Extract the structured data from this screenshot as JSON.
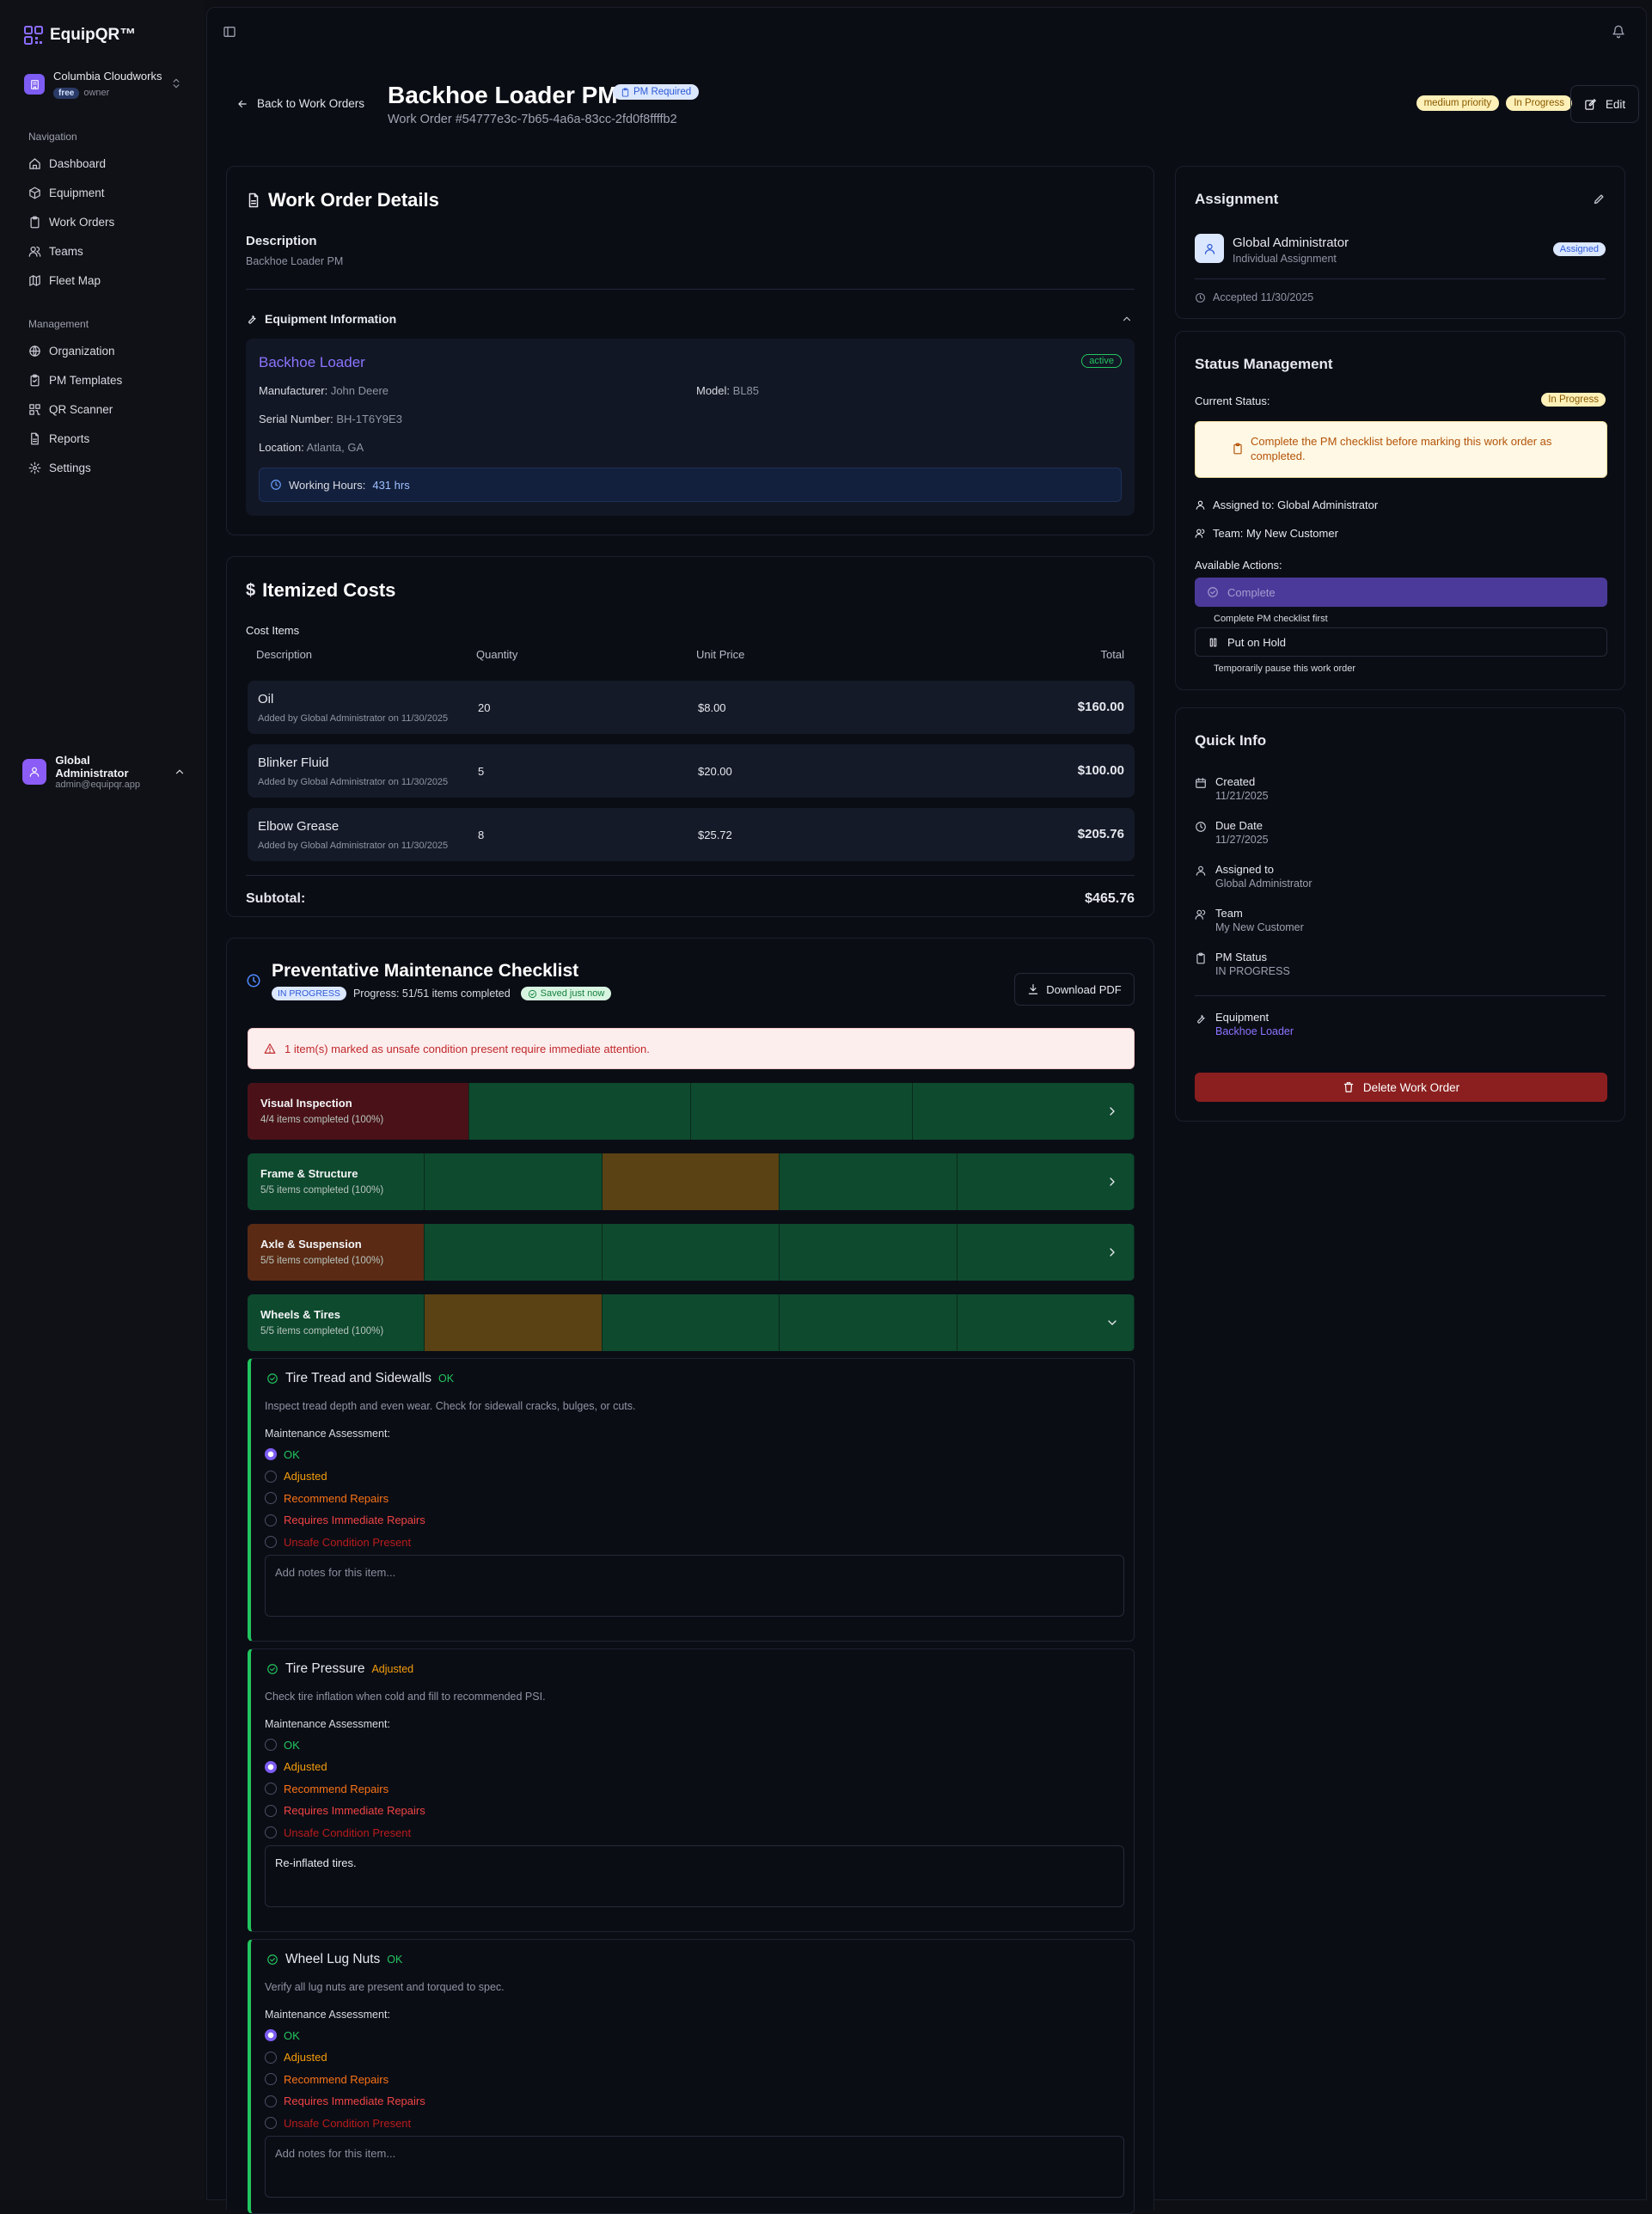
{
  "app": {
    "name": "EquipQR™"
  },
  "org": {
    "name": "Columbia Cloudworks",
    "plan": "free",
    "role": "owner"
  },
  "nav": {
    "heading": "Navigation",
    "items": [
      {
        "label": "Dashboard",
        "icon": "home-icon"
      },
      {
        "label": "Equipment",
        "icon": "box-icon"
      },
      {
        "label": "Work Orders",
        "icon": "clipboard-icon"
      },
      {
        "label": "Teams",
        "icon": "users-icon"
      },
      {
        "label": "Fleet Map",
        "icon": "map-icon"
      }
    ]
  },
  "management": {
    "heading": "Management",
    "items": [
      {
        "label": "Organization",
        "icon": "globe-icon"
      },
      {
        "label": "PM Templates",
        "icon": "clipboard-check-icon"
      },
      {
        "label": "QR Scanner",
        "icon": "qr-icon"
      },
      {
        "label": "Reports",
        "icon": "file-icon"
      },
      {
        "label": "Settings",
        "icon": "gear-icon"
      }
    ]
  },
  "user": {
    "name": "Global Administrator",
    "email": "admin@equipqr.app"
  },
  "header": {
    "back_label": "Back to Work Orders",
    "title": "Backhoe Loader PM",
    "pm_badge": "PM Required",
    "work_order_number": "Work Order #54777e3c-7b65-4a6a-83cc-2fd0f8ffffb2",
    "priority_badge": "medium priority",
    "status_badge": "In Progress",
    "edit_label": "Edit"
  },
  "details": {
    "title": "Work Order Details",
    "description_label": "Description",
    "description": "Backhoe Loader PM",
    "equipment_section_title": "Equipment Information",
    "equipment_name": "Backhoe Loader",
    "equipment_status": "active",
    "manufacturer_label": "Manufacturer:",
    "manufacturer": "John Deere",
    "model_label": "Model:",
    "model": "BL85",
    "serial_label": "Serial Number:",
    "serial": "BH-1T6Y9E3",
    "location_label": "Location:",
    "location": "Atlanta, GA",
    "hours_label": "Working Hours:",
    "hours": "431 hrs"
  },
  "costs": {
    "title": "Itemized Costs",
    "section_label": "Cost Items",
    "columns": [
      "Description",
      "Quantity",
      "Unit Price",
      "Total"
    ],
    "rows": [
      {
        "name": "Oil",
        "added": "Added by Global Administrator on 11/30/2025",
        "qty": "20",
        "price": "$8.00",
        "total": "$160.00"
      },
      {
        "name": "Blinker Fluid",
        "added": "Added by Global Administrator on 11/30/2025",
        "qty": "5",
        "price": "$20.00",
        "total": "$100.00"
      },
      {
        "name": "Elbow Grease",
        "added": "Added by Global Administrator on 11/30/2025",
        "qty": "8",
        "price": "$25.72",
        "total": "$205.76"
      }
    ],
    "subtotal_label": "Subtotal:",
    "subtotal": "$465.76"
  },
  "checklist": {
    "title": "Preventative Maintenance Checklist",
    "status_badge": "IN PROGRESS",
    "progress_text": "Progress: 51/51 items completed",
    "saved_badge": "Saved just now",
    "download_label": "Download PDF",
    "alert": "1 item(s) marked as unsafe condition present require immediate attention.",
    "categories": [
      {
        "title": "Visual Inspection",
        "subtitle": "4/4 items completed (100%)",
        "segments": [
          "unsafe",
          "ok",
          "ok",
          "ok"
        ],
        "expanded": false
      },
      {
        "title": "Frame & Structure",
        "subtitle": "5/5 items completed (100%)",
        "segments": [
          "ok",
          "ok",
          "adjusted",
          "ok",
          "ok"
        ],
        "expanded": false
      },
      {
        "title": "Axle & Suspension",
        "subtitle": "5/5 items completed (100%)",
        "segments": [
          "recommend",
          "ok",
          "ok",
          "ok",
          "ok"
        ],
        "expanded": false
      },
      {
        "title": "Wheels & Tires",
        "subtitle": "5/5 items completed (100%)",
        "segments": [
          "ok",
          "adjusted",
          "ok",
          "ok",
          "ok"
        ],
        "expanded": true
      }
    ],
    "assessment_label": "Maintenance Assessment:",
    "options": [
      "OK",
      "Adjusted",
      "Recommend Repairs",
      "Requires Immediate Repairs",
      "Unsafe Condition Present"
    ],
    "notes_placeholder": "Add notes for this item...",
    "items": [
      {
        "title": "Tire Tread and Sidewalls",
        "status": "OK",
        "description": "Inspect tread depth and even wear. Check for sidewall cracks, bulges, or cuts.",
        "selected": 0,
        "notes": ""
      },
      {
        "title": "Tire Pressure",
        "status": "Adjusted",
        "description": "Check tire inflation when cold and fill to recommended PSI.",
        "selected": 1,
        "notes": "Re-inflated tires."
      },
      {
        "title": "Wheel Lug Nuts",
        "status": "OK",
        "description": "Verify all lug nuts are present and torqued to spec.",
        "selected": 0,
        "notes": ""
      }
    ]
  },
  "assignment": {
    "title": "Assignment",
    "name": "Global Administrator",
    "type": "Individual Assignment",
    "badge": "Assigned",
    "accepted": "Accepted 11/30/2025"
  },
  "status_mgmt": {
    "title": "Status Management",
    "current_label": "Current Status:",
    "current": "In Progress",
    "warning": "Complete the PM checklist before marking this work order as completed.",
    "assigned_to": "Assigned to: Global Administrator",
    "team": "Team: My New Customer",
    "actions_label": "Available Actions:",
    "complete_label": "Complete",
    "complete_hint": "Complete PM checklist first",
    "hold_label": "Put on Hold",
    "hold_hint": "Temporarily pause this work order"
  },
  "quick_info": {
    "title": "Quick Info",
    "created_label": "Created",
    "created": "11/21/2025",
    "due_label": "Due Date",
    "due": "11/27/2025",
    "assigned_label": "Assigned to",
    "assigned": "Global Administrator",
    "team_label": "Team",
    "team": "My New Customer",
    "pm_label": "PM Status",
    "pm": "IN PROGRESS",
    "equipment_label": "Equipment",
    "equipment": "Backhoe Loader",
    "delete_label": "Delete Work Order"
  },
  "colors": {
    "accent": "#7c5cf2",
    "ok": "#22c55e",
    "adjusted": "#f59e0b",
    "recommend": "#f97316",
    "immediate": "#ef4444",
    "unsafe": "#b91c1c",
    "danger": "#991b1b"
  }
}
